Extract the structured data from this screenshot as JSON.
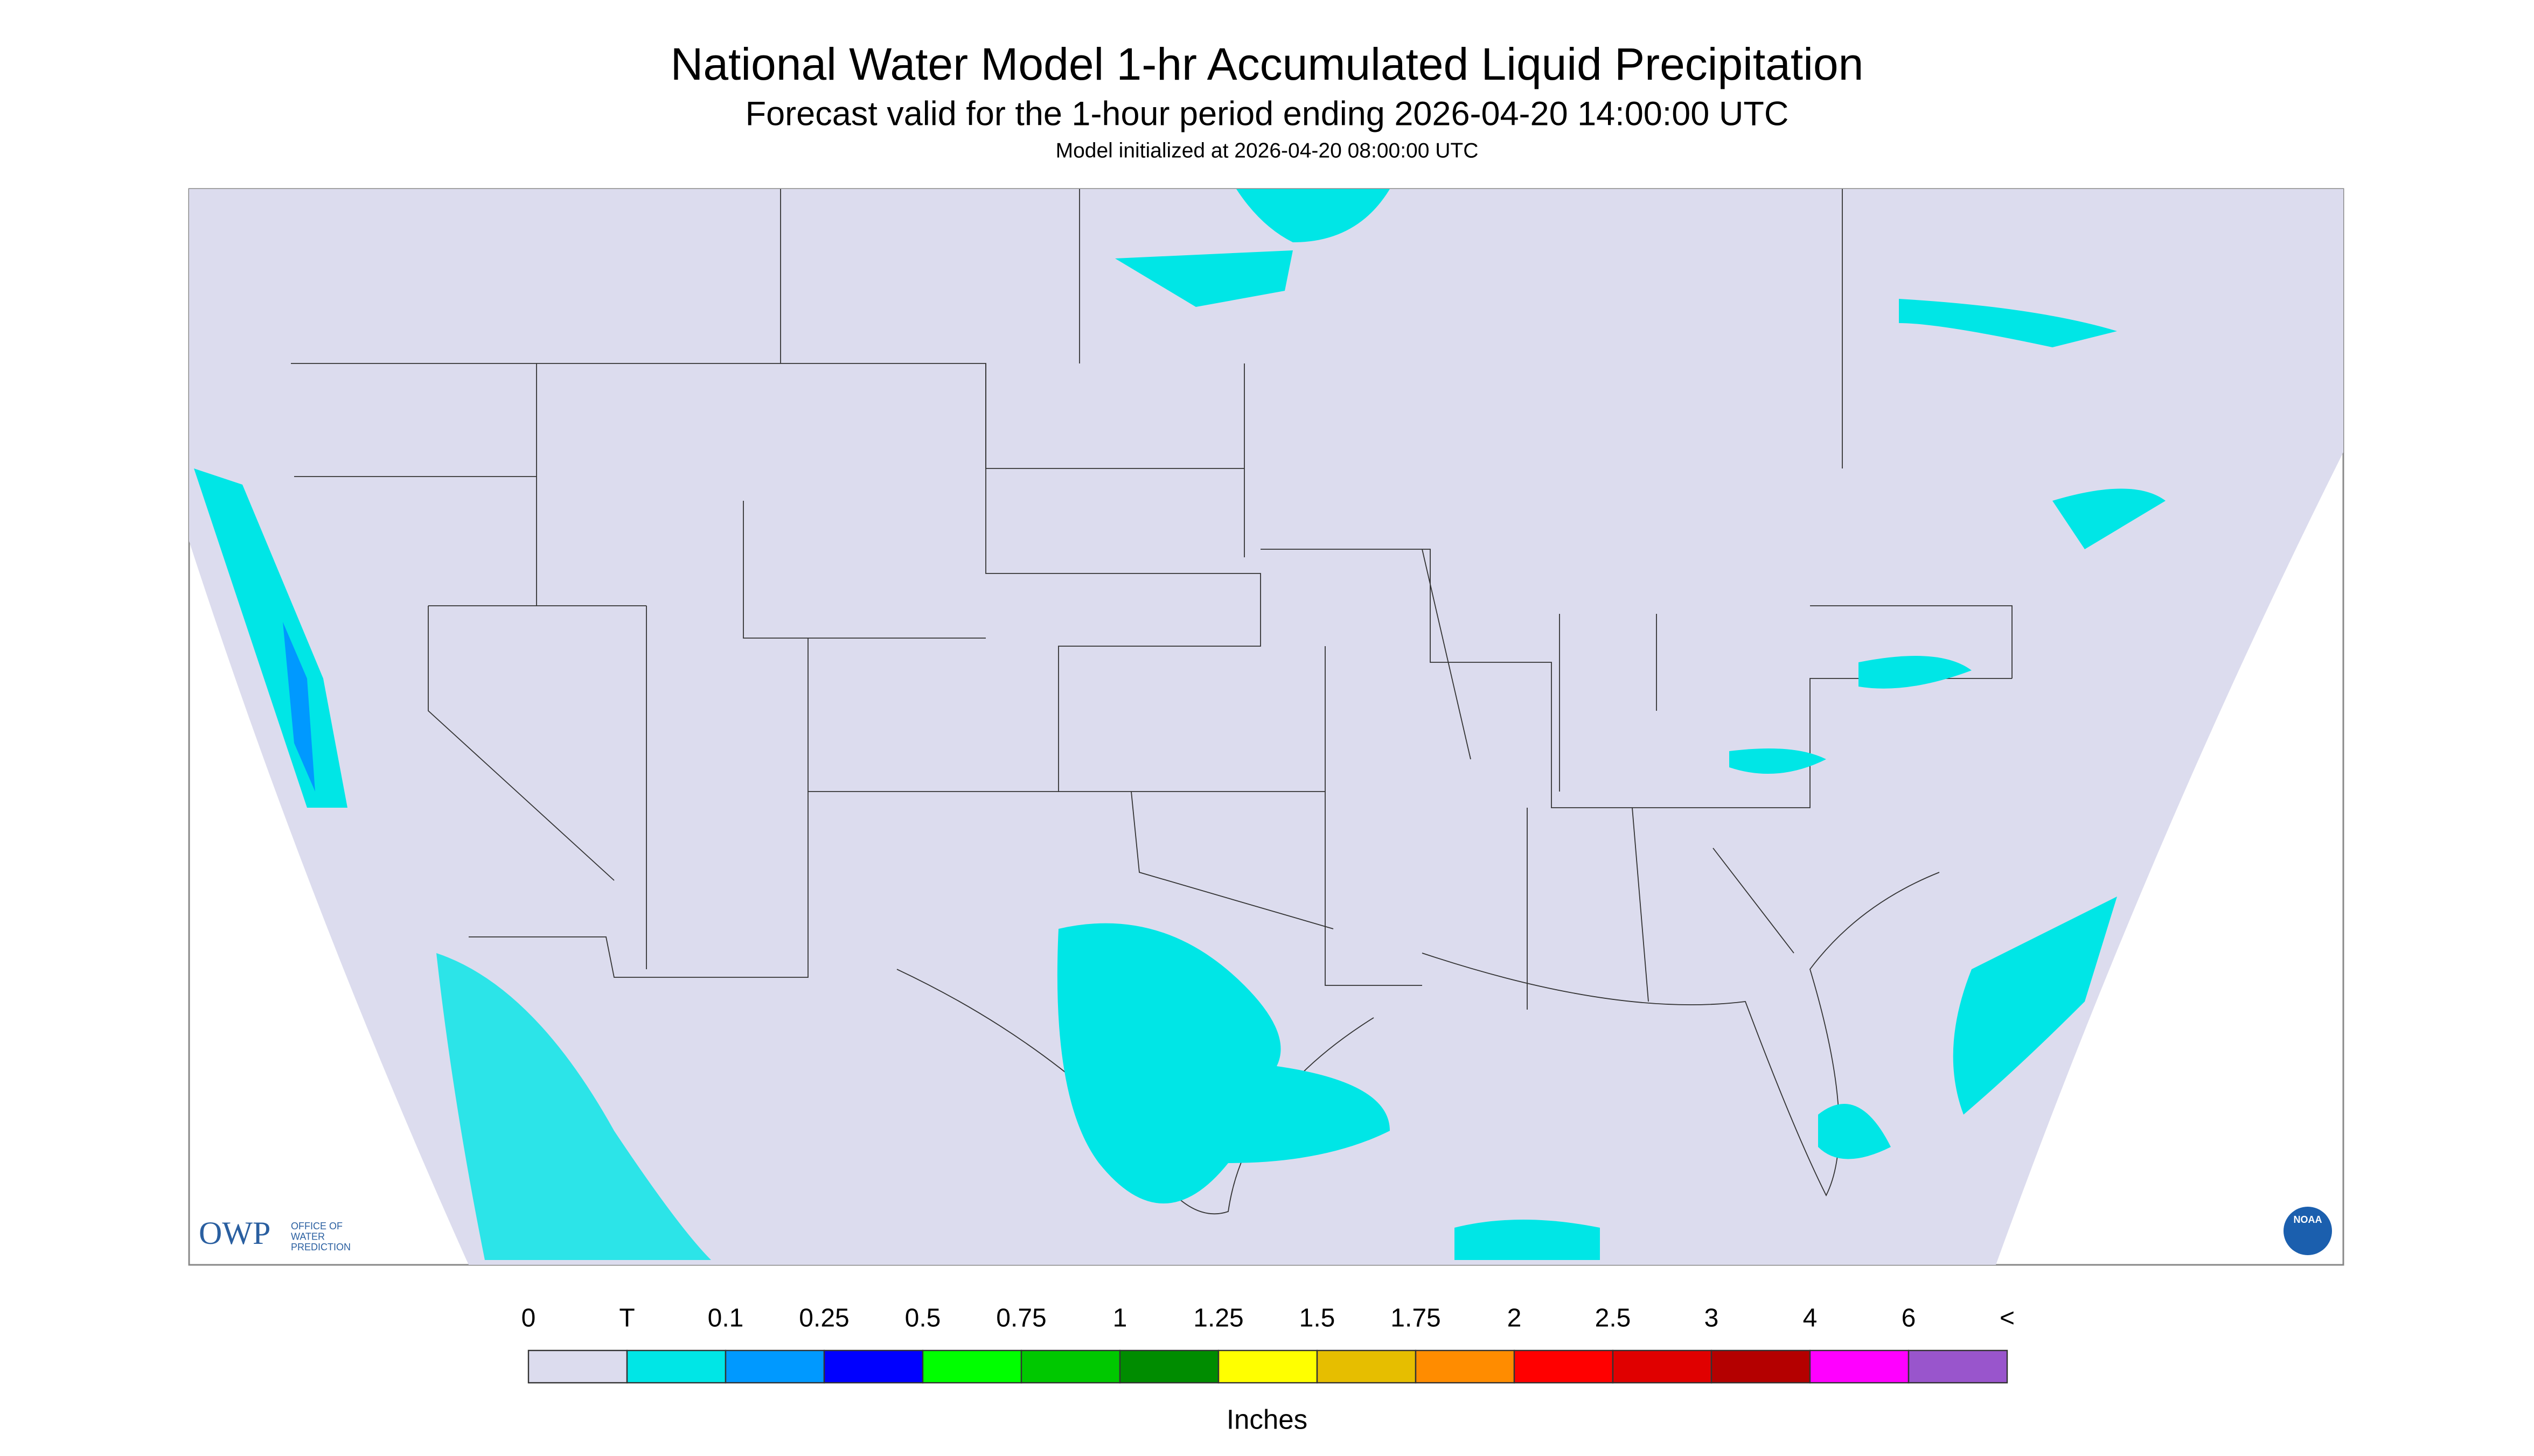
{
  "header": {
    "title": "National Water Model 1-hr Accumulated Liquid Precipitation",
    "subtitle": "Forecast valid for the 1-hour period ending 2026-04-20 14:00:00 UTC",
    "init": "Model initialized at 2026-04-20 08:00:00 UTC"
  },
  "logos": {
    "owp": "OWP",
    "owp_text": [
      "OFFICE OF",
      "WATER",
      "PREDICTION"
    ],
    "noaa": "NOAA"
  },
  "legend": {
    "labels": [
      "0",
      "T",
      "0.1",
      "0.25",
      "0.5",
      "0.75",
      "1",
      "1.25",
      "1.5",
      "1.75",
      "2",
      "2.5",
      "3",
      "4",
      "6",
      "<"
    ],
    "colors": [
      "#dcdcee",
      "#00e6e6",
      "#0099ff",
      "#0000ff",
      "#00ff00",
      "#00c800",
      "#008c00",
      "#ffff00",
      "#e6be00",
      "#ff8c00",
      "#ff0000",
      "#e00000",
      "#b40000",
      "#ff00ff",
      "#9955cc"
    ],
    "unit": "Inches"
  }
}
